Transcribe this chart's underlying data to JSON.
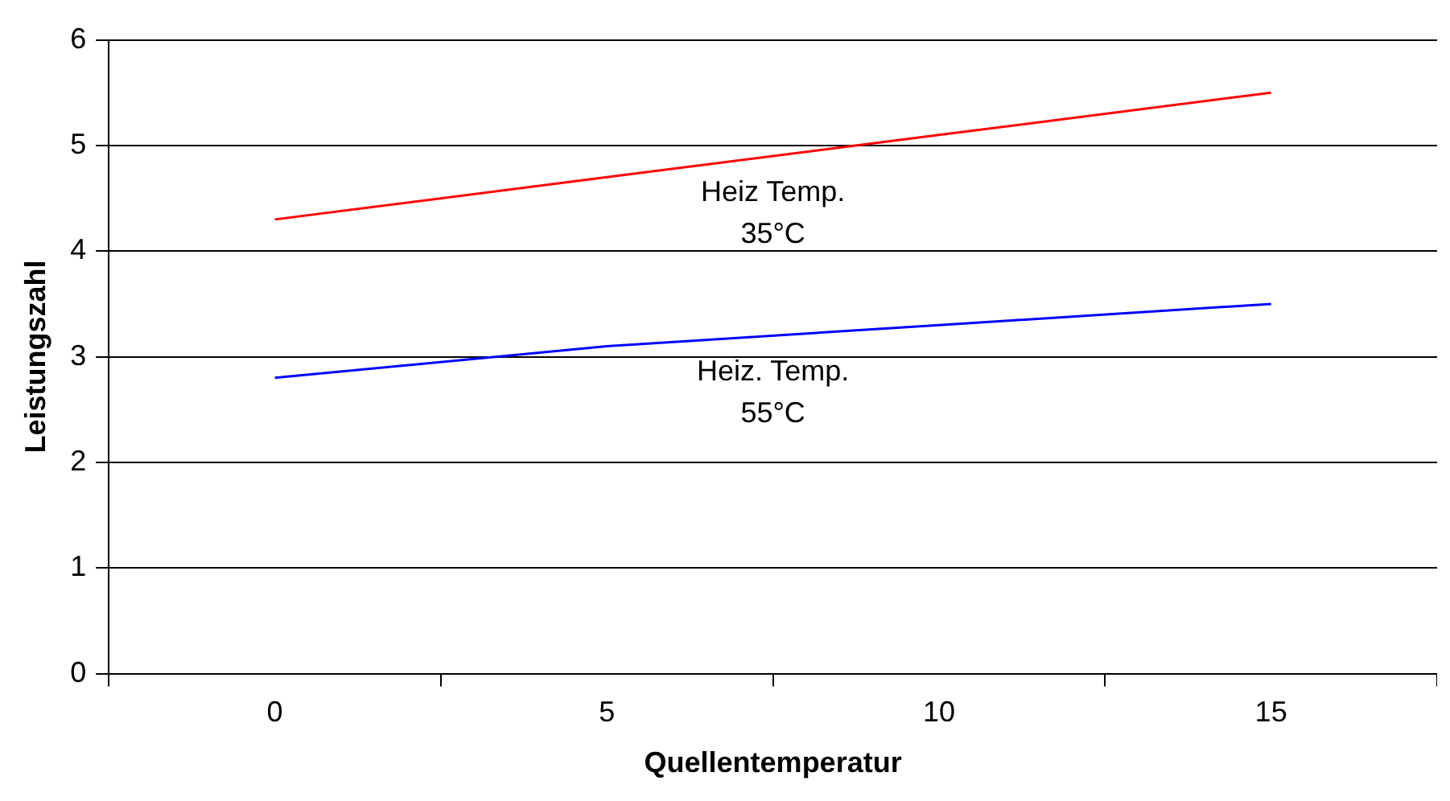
{
  "chart_data": {
    "type": "line",
    "xlabel": "Quellentemperatur",
    "ylabel": "Leistungszahl",
    "categories": [
      "0",
      "5",
      "10",
      "15"
    ],
    "series": [
      {
        "name": "Heiz Temp. 35°C",
        "color": "#ff0000",
        "values": [
          4.3,
          4.7,
          5.1,
          5.5
        ]
      },
      {
        "name": "Heiz. Temp. 55°C",
        "color": "#0000ff",
        "values": [
          2.8,
          3.1,
          3.3,
          3.5
        ]
      }
    ],
    "ylim": [
      0,
      6
    ],
    "yticks": [
      0,
      1,
      2,
      3,
      4,
      5,
      6
    ],
    "grid": "y",
    "legend": false,
    "marker": "none",
    "line_style": "solid"
  }
}
